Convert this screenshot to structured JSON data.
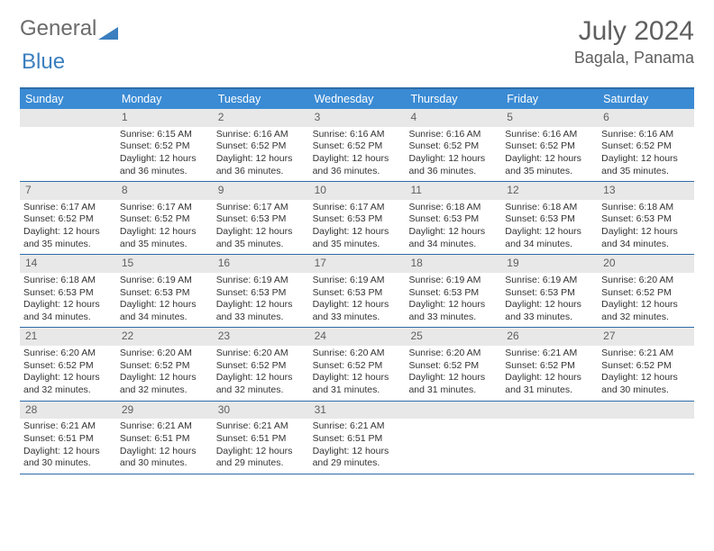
{
  "logo": {
    "part1": "General",
    "part2": "Blue"
  },
  "title": "July 2024",
  "location": "Bagala, Panama",
  "colors": {
    "header_bg": "#3b8bd4",
    "header_text": "#ffffff",
    "border": "#2e6ca8",
    "daynum_bg": "#e8e8e8",
    "daynum_text": "#5f5f5f",
    "body_text": "#333333",
    "title_text": "#5f5f5f",
    "logo_blue": "#3b7fbf",
    "logo_gray": "#6b6b6b"
  },
  "dow": [
    "Sunday",
    "Monday",
    "Tuesday",
    "Wednesday",
    "Thursday",
    "Friday",
    "Saturday"
  ],
  "weeks": [
    [
      {
        "empty": true
      },
      {
        "n": "1",
        "sr": "6:15 AM",
        "ss": "6:52 PM",
        "d1": "Daylight: 12 hours",
        "d2": "and 36 minutes."
      },
      {
        "n": "2",
        "sr": "6:16 AM",
        "ss": "6:52 PM",
        "d1": "Daylight: 12 hours",
        "d2": "and 36 minutes."
      },
      {
        "n": "3",
        "sr": "6:16 AM",
        "ss": "6:52 PM",
        "d1": "Daylight: 12 hours",
        "d2": "and 36 minutes."
      },
      {
        "n": "4",
        "sr": "6:16 AM",
        "ss": "6:52 PM",
        "d1": "Daylight: 12 hours",
        "d2": "and 36 minutes."
      },
      {
        "n": "5",
        "sr": "6:16 AM",
        "ss": "6:52 PM",
        "d1": "Daylight: 12 hours",
        "d2": "and 35 minutes."
      },
      {
        "n": "6",
        "sr": "6:16 AM",
        "ss": "6:52 PM",
        "d1": "Daylight: 12 hours",
        "d2": "and 35 minutes."
      }
    ],
    [
      {
        "n": "7",
        "sr": "6:17 AM",
        "ss": "6:52 PM",
        "d1": "Daylight: 12 hours",
        "d2": "and 35 minutes."
      },
      {
        "n": "8",
        "sr": "6:17 AM",
        "ss": "6:52 PM",
        "d1": "Daylight: 12 hours",
        "d2": "and 35 minutes."
      },
      {
        "n": "9",
        "sr": "6:17 AM",
        "ss": "6:53 PM",
        "d1": "Daylight: 12 hours",
        "d2": "and 35 minutes."
      },
      {
        "n": "10",
        "sr": "6:17 AM",
        "ss": "6:53 PM",
        "d1": "Daylight: 12 hours",
        "d2": "and 35 minutes."
      },
      {
        "n": "11",
        "sr": "6:18 AM",
        "ss": "6:53 PM",
        "d1": "Daylight: 12 hours",
        "d2": "and 34 minutes."
      },
      {
        "n": "12",
        "sr": "6:18 AM",
        "ss": "6:53 PM",
        "d1": "Daylight: 12 hours",
        "d2": "and 34 minutes."
      },
      {
        "n": "13",
        "sr": "6:18 AM",
        "ss": "6:53 PM",
        "d1": "Daylight: 12 hours",
        "d2": "and 34 minutes."
      }
    ],
    [
      {
        "n": "14",
        "sr": "6:18 AM",
        "ss": "6:53 PM",
        "d1": "Daylight: 12 hours",
        "d2": "and 34 minutes."
      },
      {
        "n": "15",
        "sr": "6:19 AM",
        "ss": "6:53 PM",
        "d1": "Daylight: 12 hours",
        "d2": "and 34 minutes."
      },
      {
        "n": "16",
        "sr": "6:19 AM",
        "ss": "6:53 PM",
        "d1": "Daylight: 12 hours",
        "d2": "and 33 minutes."
      },
      {
        "n": "17",
        "sr": "6:19 AM",
        "ss": "6:53 PM",
        "d1": "Daylight: 12 hours",
        "d2": "and 33 minutes."
      },
      {
        "n": "18",
        "sr": "6:19 AM",
        "ss": "6:53 PM",
        "d1": "Daylight: 12 hours",
        "d2": "and 33 minutes."
      },
      {
        "n": "19",
        "sr": "6:19 AM",
        "ss": "6:53 PM",
        "d1": "Daylight: 12 hours",
        "d2": "and 33 minutes."
      },
      {
        "n": "20",
        "sr": "6:20 AM",
        "ss": "6:52 PM",
        "d1": "Daylight: 12 hours",
        "d2": "and 32 minutes."
      }
    ],
    [
      {
        "n": "21",
        "sr": "6:20 AM",
        "ss": "6:52 PM",
        "d1": "Daylight: 12 hours",
        "d2": "and 32 minutes."
      },
      {
        "n": "22",
        "sr": "6:20 AM",
        "ss": "6:52 PM",
        "d1": "Daylight: 12 hours",
        "d2": "and 32 minutes."
      },
      {
        "n": "23",
        "sr": "6:20 AM",
        "ss": "6:52 PM",
        "d1": "Daylight: 12 hours",
        "d2": "and 32 minutes."
      },
      {
        "n": "24",
        "sr": "6:20 AM",
        "ss": "6:52 PM",
        "d1": "Daylight: 12 hours",
        "d2": "and 31 minutes."
      },
      {
        "n": "25",
        "sr": "6:20 AM",
        "ss": "6:52 PM",
        "d1": "Daylight: 12 hours",
        "d2": "and 31 minutes."
      },
      {
        "n": "26",
        "sr": "6:21 AM",
        "ss": "6:52 PM",
        "d1": "Daylight: 12 hours",
        "d2": "and 31 minutes."
      },
      {
        "n": "27",
        "sr": "6:21 AM",
        "ss": "6:52 PM",
        "d1": "Daylight: 12 hours",
        "d2": "and 30 minutes."
      }
    ],
    [
      {
        "n": "28",
        "sr": "6:21 AM",
        "ss": "6:51 PM",
        "d1": "Daylight: 12 hours",
        "d2": "and 30 minutes."
      },
      {
        "n": "29",
        "sr": "6:21 AM",
        "ss": "6:51 PM",
        "d1": "Daylight: 12 hours",
        "d2": "and 30 minutes."
      },
      {
        "n": "30",
        "sr": "6:21 AM",
        "ss": "6:51 PM",
        "d1": "Daylight: 12 hours",
        "d2": "and 29 minutes."
      },
      {
        "n": "31",
        "sr": "6:21 AM",
        "ss": "6:51 PM",
        "d1": "Daylight: 12 hours",
        "d2": "and 29 minutes."
      },
      {
        "empty": true
      },
      {
        "empty": true
      },
      {
        "empty": true
      }
    ]
  ]
}
